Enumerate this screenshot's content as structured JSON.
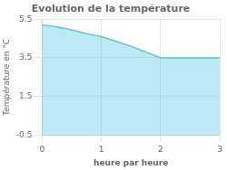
{
  "chart_data": {
    "type": "area",
    "title": "Evolution de la température",
    "xlabel": "heure par heure",
    "ylabel": "Température en °C",
    "x": [
      0,
      0.25,
      0.5,
      0.75,
      1.0,
      1.25,
      1.5,
      1.75,
      2.0,
      2.5,
      3.0
    ],
    "values": [
      5.2,
      5.1,
      4.95,
      4.75,
      4.6,
      4.35,
      4.1,
      3.8,
      3.5,
      3.5,
      3.5
    ],
    "color": "#5bc8e0",
    "xlim": [
      0,
      3
    ],
    "ylim": [
      -0.5,
      5.5
    ],
    "xticks": [
      0,
      1,
      2,
      3
    ],
    "yticks": [
      -0.5,
      1.5,
      3.5,
      5.5
    ],
    "grid": true
  }
}
